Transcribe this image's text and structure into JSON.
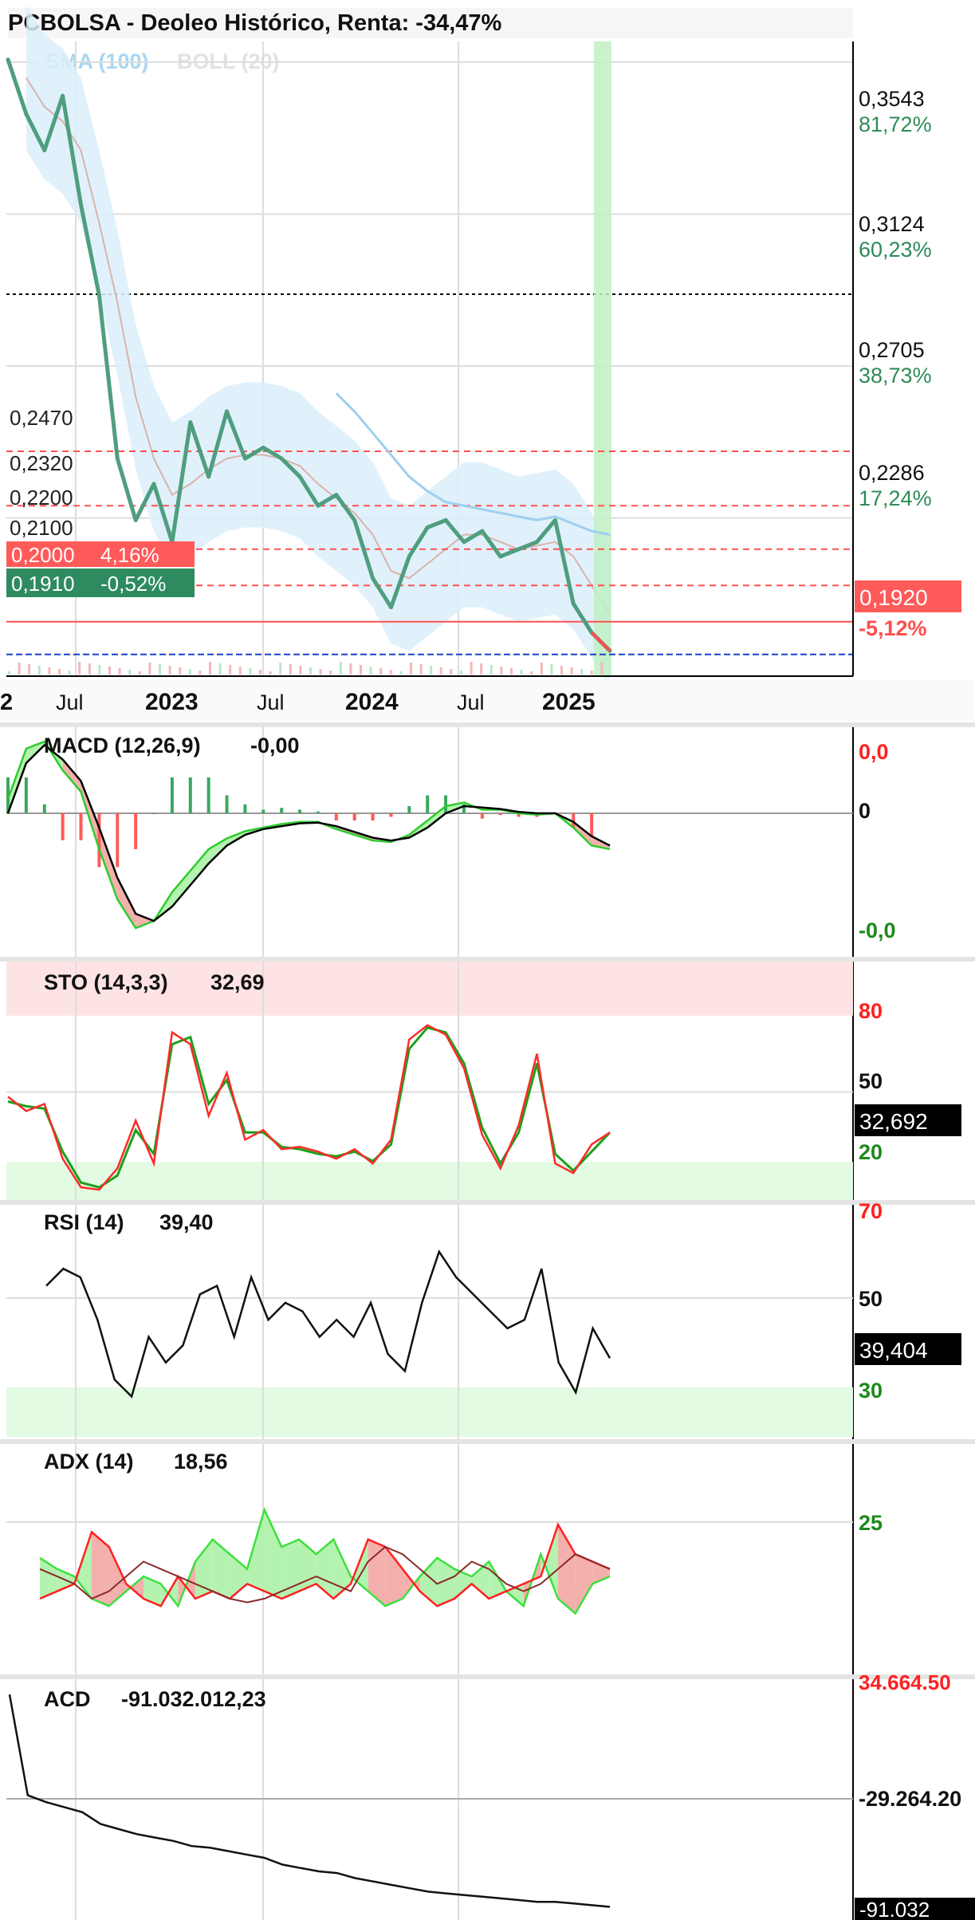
{
  "header": {
    "title": "PCBOLSA - Deoleo Histórico, Renta: -34,47%"
  },
  "colors": {
    "price": "#4f9e7f",
    "band": "#dbeffb",
    "sma": "#9dd0ec",
    "boll": "#d9b3a8",
    "up": "#2e9f6e",
    "down": "#ff4d4d",
    "green_label": "#2e8b57",
    "red_label": "#ff5050",
    "highlight": "#bff0c4",
    "macd_fill_pos": "#b4f2b0",
    "macd_fill_neg": "#f3b0ac"
  },
  "price_panel": {
    "legend": {
      "sma": "SMA (100)",
      "boll": "BOLL (20)"
    },
    "right_axis": [
      {
        "price": "0,3543",
        "pct": "81,72%"
      },
      {
        "price": "0,3124",
        "pct": "60,23%"
      },
      {
        "price": "0,2705",
        "pct": "38,73%"
      },
      {
        "price": "0,2286",
        "pct": "17,24%"
      }
    ],
    "last_price": "0,1920",
    "last_pct": "-5,12%",
    "levels": [
      "0,2470",
      "0,2320",
      "0,2200",
      "0,2100"
    ],
    "tag_red": {
      "price": "0,2000",
      "pct": "4,16%"
    },
    "tag_green": {
      "price": "0,1910",
      "pct": "-0,52%"
    },
    "x_labels": [
      "2",
      "Jul",
      "2023",
      "Jul",
      "2024",
      "Jul",
      "2025"
    ]
  },
  "indicators": {
    "macd": {
      "label": "MACD (12,26,9)",
      "value": "-0,00",
      "axis": [
        "0,0",
        "0",
        "-0,0"
      ]
    },
    "sto": {
      "label": "STO (14,3,3)",
      "value": "32,69",
      "axis": [
        "80",
        "50",
        "20"
      ],
      "tag": "32,692"
    },
    "rsi": {
      "label": "RSI (14)",
      "value": "39,40",
      "axis": [
        "70",
        "50",
        "30"
      ],
      "tag": "39,404"
    },
    "adx": {
      "label": "ADX (14)",
      "value": "18,56",
      "axis": [
        "25"
      ]
    },
    "acd": {
      "label": "ACD",
      "value": "-91.032.012,23",
      "axis": [
        "34.664.50",
        "-29.264.20",
        "-91.032"
      ]
    }
  },
  "chart_data": [
    {
      "type": "line",
      "title": "PCBOLSA - Deoleo Histórico, Renta: -34,47%",
      "x": [
        "2022-05",
        "2022-06",
        "2022-07",
        "2022-08",
        "2022-09",
        "2022-10",
        "2022-11",
        "2022-12",
        "2023-01",
        "2023-02",
        "2023-03",
        "2023-04",
        "2023-05",
        "2023-06",
        "2023-07",
        "2023-08",
        "2023-09",
        "2023-10",
        "2023-11",
        "2023-12",
        "2024-01",
        "2024-02",
        "2024-03",
        "2024-04",
        "2024-05",
        "2024-06",
        "2024-07",
        "2024-08",
        "2024-09",
        "2024-10",
        "2024-11",
        "2024-12",
        "2025-01",
        "2025-02"
      ],
      "series": [
        {
          "name": "",
          "values": [
            0.355,
            0.34,
            0.33,
            0.345,
            0.315,
            0.29,
            0.245,
            0.228,
            0.238,
            0.222,
            0.255,
            0.24,
            0.258,
            0.245,
            0.248,
            0.245,
            0.24,
            0.232,
            0.235,
            0.228,
            0.212,
            0.204,
            0.218,
            0.226,
            0.228,
            0.222,
            0.225,
            0.218,
            0.22,
            0.222,
            0.228,
            0.205,
            0.197,
            0.192
          ]
        },
        {
          "name": "SMA (100)",
          "values": [
            null,
            null,
            null,
            null,
            null,
            null,
            null,
            null,
            null,
            null,
            null,
            null,
            null,
            null,
            null,
            null,
            null,
            null,
            0.263,
            0.258,
            0.252,
            0.246,
            0.24,
            0.236,
            0.233,
            0.232,
            0.231,
            0.23,
            0.229,
            0.228,
            0.229,
            0.227,
            0.225,
            0.224
          ]
        },
        {
          "name": "BOLL (20)",
          "values": [
            null,
            0.35,
            0.342,
            0.338,
            0.33,
            0.31,
            0.288,
            0.262,
            0.245,
            0.235,
            0.238,
            0.242,
            0.245,
            0.246,
            0.246,
            0.245,
            0.243,
            0.238,
            0.234,
            0.23,
            0.224,
            0.214,
            0.212,
            0.216,
            0.22,
            0.224,
            0.224,
            0.222,
            0.22,
            0.221,
            0.222,
            0.218,
            0.21,
            0.202
          ]
        }
      ],
      "xlabel": "",
      "ylabel": "",
      "ylim": [
        0.185,
        0.36
      ],
      "yticks": [
        "0,3543",
        "0,3124",
        "0,2705",
        "0,2286"
      ],
      "horizontal_levels": [
        0.247,
        0.232,
        0.22,
        0.21,
        0.2,
        0.191
      ],
      "last_value": 0.192,
      "grid": true,
      "legend": "top-left"
    },
    {
      "type": "line",
      "title": "MACD (12,26,9)",
      "x": [
        "2022-05",
        "2022-06",
        "2022-07",
        "2022-08",
        "2022-09",
        "2022-10",
        "2022-11",
        "2022-12",
        "2023-01",
        "2023-02",
        "2023-03",
        "2023-04",
        "2023-05",
        "2023-06",
        "2023-07",
        "2023-08",
        "2023-09",
        "2023-10",
        "2023-11",
        "2023-12",
        "2024-01",
        "2024-02",
        "2024-03",
        "2024-04",
        "2024-05",
        "2024-06",
        "2024-07",
        "2024-08",
        "2024-09",
        "2024-10",
        "2024-11",
        "2024-12",
        "2025-01",
        "2025-02"
      ],
      "series": [
        {
          "name": "",
          "values": [
            0.2,
            0.9,
            1.0,
            0.6,
            0.3,
            -0.5,
            -1.2,
            -1.6,
            -1.5,
            -1.1,
            -0.8,
            -0.5,
            -0.35,
            -0.25,
            -0.2,
            -0.15,
            -0.12,
            -0.12,
            -0.22,
            -0.3,
            -0.38,
            -0.4,
            -0.3,
            -0.1,
            0.1,
            0.15,
            0.05,
            0.05,
            0.0,
            -0.02,
            0.0,
            -0.2,
            -0.45,
            -0.5
          ]
        },
        {
          "name": "",
          "values": [
            0.0,
            0.7,
            0.95,
            0.75,
            0.45,
            -0.2,
            -0.9,
            -1.4,
            -1.5,
            -1.3,
            -1.0,
            -0.7,
            -0.45,
            -0.3,
            -0.22,
            -0.18,
            -0.14,
            -0.13,
            -0.18,
            -0.26,
            -0.34,
            -0.38,
            -0.34,
            -0.2,
            0.0,
            0.1,
            0.08,
            0.06,
            0.02,
            0.0,
            0.0,
            -0.12,
            -0.32,
            -0.45
          ]
        }
      ],
      "ylim": [
        -2.0,
        1.2
      ]
    },
    {
      "type": "line",
      "title": "STO (14,3,3)",
      "x": [
        "2022-05",
        "2022-06",
        "2022-07",
        "2022-08",
        "2022-09",
        "2022-10",
        "2022-11",
        "2022-12",
        "2023-01",
        "2023-02",
        "2023-03",
        "2023-04",
        "2023-05",
        "2023-06",
        "2023-07",
        "2023-08",
        "2023-09",
        "2023-10",
        "2023-11",
        "2023-12",
        "2024-01",
        "2024-02",
        "2024-03",
        "2024-04",
        "2024-05",
        "2024-06",
        "2024-07",
        "2024-08",
        "2024-09",
        "2024-10",
        "2024-11",
        "2024-12",
        "2025-01",
        "2025-02"
      ],
      "series": [
        {
          "name": "",
          "values": [
            48,
            42,
            45,
            22,
            10,
            9,
            18,
            38,
            20,
            75,
            70,
            40,
            58,
            30,
            34,
            26,
            27,
            25,
            22,
            26,
            20,
            30,
            72,
            78,
            74,
            60,
            32,
            18,
            36,
            66,
            20,
            16,
            28,
            33
          ]
        },
        {
          "name": "",
          "values": [
            46,
            44,
            43,
            25,
            12,
            10,
            15,
            34,
            24,
            70,
            73,
            45,
            55,
            33,
            33,
            27,
            26,
            24,
            23,
            25,
            21,
            28,
            68,
            77,
            75,
            62,
            35,
            20,
            33,
            62,
            24,
            17,
            25,
            33
          ]
        }
      ],
      "ylim": [
        0,
        100
      ],
      "bands": [
        20,
        80
      ]
    },
    {
      "type": "line",
      "title": "RSI (14)",
      "x": [
        "2022-05",
        "2022-06",
        "2022-07",
        "2022-08",
        "2022-09",
        "2022-10",
        "2022-11",
        "2022-12",
        "2023-01",
        "2023-02",
        "2023-03",
        "2023-04",
        "2023-05",
        "2023-06",
        "2023-07",
        "2023-08",
        "2023-09",
        "2023-10",
        "2023-11",
        "2023-12",
        "2024-01",
        "2024-02",
        "2024-03",
        "2024-04",
        "2024-05",
        "2024-06",
        "2024-07",
        "2024-08",
        "2024-09",
        "2024-10",
        "2024-11",
        "2024-12",
        "2025-01",
        "2025-02"
      ],
      "series": [
        {
          "name": "",
          "values": [
            56,
            60,
            58,
            48,
            34,
            30,
            44,
            38,
            42,
            54,
            56,
            44,
            58,
            48,
            52,
            50,
            44,
            48,
            44,
            52,
            40,
            36,
            52,
            64,
            58,
            54,
            50,
            46,
            48,
            60,
            38,
            31,
            46,
            39
          ]
        }
      ],
      "ylim": [
        20,
        75
      ],
      "bands": [
        30,
        70
      ]
    },
    {
      "type": "line",
      "title": "ADX (14)",
      "x": [
        "2022-05",
        "2022-06",
        "2022-07",
        "2022-08",
        "2022-09",
        "2022-10",
        "2022-11",
        "2022-12",
        "2023-01",
        "2023-02",
        "2023-03",
        "2023-04",
        "2023-05",
        "2023-06",
        "2023-07",
        "2023-08",
        "2023-09",
        "2023-10",
        "2023-11",
        "2023-12",
        "2024-01",
        "2024-02",
        "2024-03",
        "2024-04",
        "2024-05",
        "2024-06",
        "2024-07",
        "2024-08",
        "2024-09",
        "2024-10",
        "2024-11",
        "2024-12",
        "2025-01",
        "2025-02"
      ],
      "series": [
        {
          "name": "",
          "values": [
            25,
            22,
            20,
            14,
            12,
            16,
            20,
            18,
            12,
            24,
            30,
            26,
            22,
            38,
            28,
            30,
            26,
            30,
            20,
            16,
            12,
            14,
            20,
            25,
            22,
            20,
            24,
            16,
            12,
            26,
            14,
            10,
            18,
            20
          ]
        },
        {
          "name": "",
          "values": [
            14,
            16,
            18,
            32,
            28,
            18,
            14,
            12,
            20,
            14,
            16,
            14,
            18,
            16,
            14,
            16,
            18,
            14,
            18,
            30,
            28,
            22,
            16,
            12,
            14,
            18,
            14,
            16,
            18,
            20,
            34,
            26,
            24,
            22
          ]
        },
        {
          "name": "",
          "values": [
            22,
            20,
            18,
            14,
            16,
            20,
            24,
            22,
            20,
            18,
            16,
            14,
            13,
            14,
            16,
            18,
            20,
            18,
            16,
            24,
            28,
            26,
            22,
            18,
            20,
            24,
            22,
            18,
            16,
            18,
            22,
            26,
            24,
            22
          ]
        }
      ],
      "ylim": [
        0,
        45
      ]
    },
    {
      "type": "line",
      "title": "ACD",
      "x": [
        "2022-05",
        "2022-06",
        "2022-07",
        "2022-08",
        "2022-09",
        "2022-10",
        "2022-11",
        "2022-12",
        "2023-01",
        "2023-02",
        "2023-03",
        "2023-04",
        "2023-05",
        "2023-06",
        "2023-07",
        "2023-08",
        "2023-09",
        "2023-10",
        "2023-11",
        "2023-12",
        "2024-01",
        "2024-02",
        "2024-03",
        "2024-04",
        "2024-05",
        "2024-06",
        "2024-07",
        "2024-08",
        "2024-09",
        "2024-10",
        "2024-11",
        "2024-12",
        "2025-01",
        "2025-02"
      ],
      "series": [
        {
          "name": "",
          "values": [
            34.6,
            -25,
            -29,
            -32,
            -35,
            -42,
            -45,
            -48,
            -50,
            -52,
            -55,
            -56,
            -58,
            -60,
            -62,
            -66,
            -68,
            -70,
            -71,
            -74,
            -76,
            -78,
            -80,
            -82,
            -83,
            -84,
            -85,
            -86,
            -87,
            -88,
            -88,
            -89,
            -90,
            -91
          ]
        }
      ],
      "ylim": [
        -95,
        38
      ],
      "yticks": [
        "34.664.50",
        "-29.264.20",
        "-91.032"
      ]
    }
  ]
}
